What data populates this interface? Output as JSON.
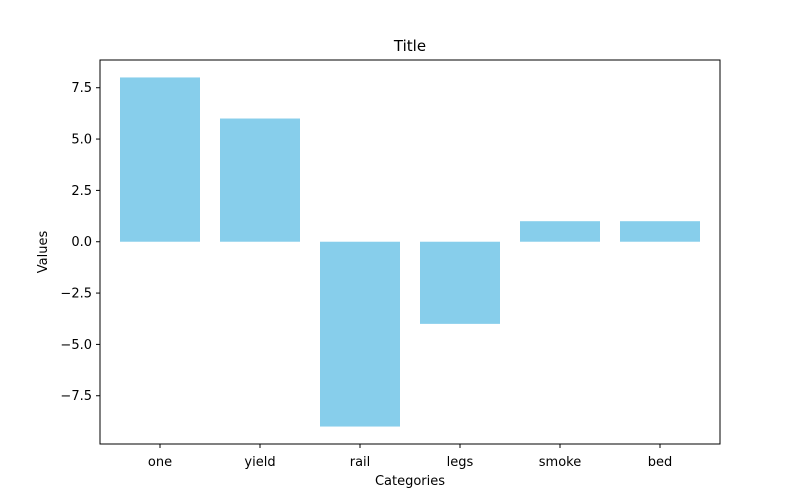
{
  "chart_data": {
    "type": "bar",
    "title": "Title",
    "xlabel": "Categories",
    "ylabel": "Values",
    "categories": [
      "one",
      "yield",
      "rail",
      "legs",
      "smoke",
      "bed"
    ],
    "values": [
      8,
      6,
      -9,
      -4,
      1,
      1
    ],
    "ylim": [
      -9.85,
      8.85
    ],
    "yticks": [
      -7.5,
      -5.0,
      -2.5,
      0.0,
      2.5,
      5.0,
      7.5
    ],
    "ytick_labels": [
      "−7.5",
      "−5.0",
      "−2.5",
      "0.0",
      "2.5",
      "5.0",
      "7.5"
    ],
    "bar_color": "#87ceeb",
    "grid": false,
    "legend": "none"
  }
}
